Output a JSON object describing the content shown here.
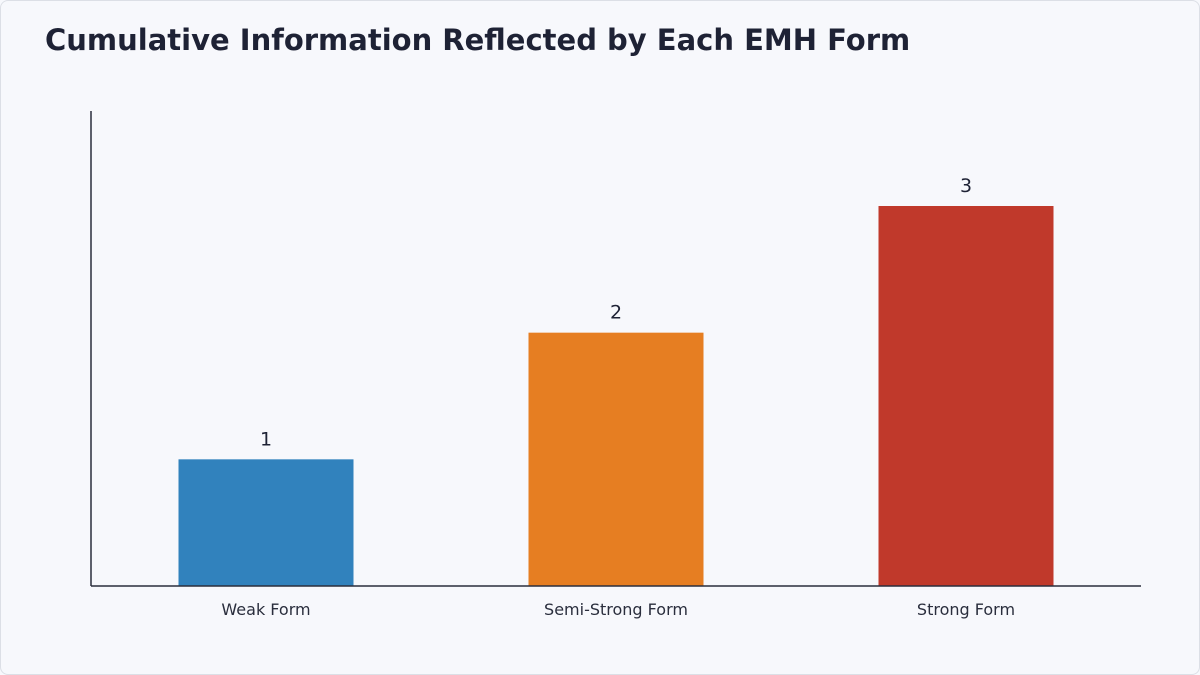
{
  "chart_data": {
    "type": "bar",
    "title": "Cumulative Information Reflected by Each EMH Form",
    "categories": [
      "Weak Form",
      "Semi-Strong Form",
      "Strong Form"
    ],
    "values": [
      1,
      2,
      3
    ],
    "colors": [
      "#3182bd",
      "#e67e22",
      "#c0392b"
    ],
    "ylim": [
      0,
      3.75
    ],
    "xlabel": "",
    "ylabel": "",
    "grid": false,
    "legend": "none"
  }
}
